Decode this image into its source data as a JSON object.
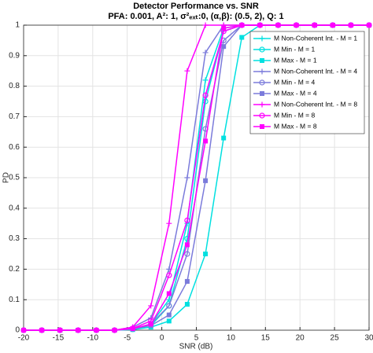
{
  "chart_data": {
    "type": "line",
    "title": "Detector Performance vs. SNR",
    "subtitle": "PFA: 0.001, A²: 1, σ²ₑₓₜ:0, (α,β): (0.5, 2), Q: 1",
    "xlabel": "SNR (dB)",
    "ylabel": "PD",
    "x": [
      -20,
      -17.37,
      -14.74,
      -12.11,
      -9.47,
      -6.84,
      -4.21,
      -1.58,
      1.05,
      3.68,
      6.32,
      8.95,
      11.58,
      14.21,
      16.84,
      19.47,
      22.11,
      24.74,
      27.37,
      30
    ],
    "xlim": [
      -20,
      30
    ],
    "xticks": [
      -20,
      -15,
      -10,
      -5,
      0,
      5,
      10,
      15,
      20,
      25,
      30
    ],
    "ylim": [
      0,
      1
    ],
    "yticks": [
      0,
      0.1,
      0.2,
      0.3,
      0.4,
      0.5,
      0.6,
      0.7,
      0.8,
      0.9,
      1
    ],
    "grid": true,
    "legend_position": "upper-right",
    "series": [
      {
        "name": "M Non-Coherent Int. - M = 1",
        "color": "#00e0e0",
        "marker": "plus",
        "values": [
          0,
          0,
          0,
          0,
          0,
          0,
          0.004,
          0.02,
          0.1,
          0.35,
          0.82,
          0.99,
          1,
          1,
          1,
          1,
          1,
          1,
          1,
          1
        ]
      },
      {
        "name": "M Min - M = 1",
        "color": "#00e0e0",
        "marker": "circle",
        "values": [
          0,
          0,
          0,
          0,
          0,
          0,
          0.003,
          0.015,
          0.08,
          0.3,
          0.75,
          0.98,
          1,
          1,
          1,
          1,
          1,
          1,
          1,
          1
        ]
      },
      {
        "name": "M Max - M = 1",
        "color": "#00e0e0",
        "marker": "square",
        "values": [
          0,
          0,
          0,
          0,
          0,
          0,
          0.002,
          0.01,
          0.03,
          0.085,
          0.25,
          0.63,
          0.96,
          1,
          1,
          1,
          1,
          1,
          1,
          1
        ]
      },
      {
        "name": "M Non-Coherent Int. - M = 4",
        "color": "#7b7bdb",
        "marker": "plus",
        "values": [
          0,
          0,
          0,
          0,
          0,
          0,
          0.01,
          0.04,
          0.2,
          0.5,
          0.91,
          1,
          1,
          1,
          1,
          1,
          1,
          1,
          1,
          1
        ]
      },
      {
        "name": "M Min - M = 4",
        "color": "#7b7bdb",
        "marker": "circle",
        "values": [
          0,
          0,
          0,
          0,
          0,
          0,
          0.005,
          0.02,
          0.08,
          0.25,
          0.66,
          0.95,
          1,
          1,
          1,
          1,
          1,
          1,
          1,
          1
        ]
      },
      {
        "name": "M Max - M = 4",
        "color": "#7b7bdb",
        "marker": "square",
        "values": [
          0,
          0,
          0,
          0,
          0,
          0,
          0.004,
          0.015,
          0.05,
          0.16,
          0.49,
          0.93,
          1,
          1,
          1,
          1,
          1,
          1,
          1,
          1
        ]
      },
      {
        "name": "M Non-Coherent Int. - M = 8",
        "color": "#ff00ff",
        "marker": "plus",
        "values": [
          0,
          0,
          0,
          0,
          0,
          0,
          0.01,
          0.08,
          0.35,
          0.85,
          1,
          1,
          1,
          1,
          1,
          1,
          1,
          1,
          1,
          1
        ]
      },
      {
        "name": "M Min - M = 8",
        "color": "#ff00ff",
        "marker": "circle",
        "values": [
          0,
          0,
          0,
          0,
          0,
          0,
          0.006,
          0.03,
          0.18,
          0.36,
          0.77,
          0.98,
          1,
          1,
          1,
          1,
          1,
          1,
          1,
          1
        ]
      },
      {
        "name": "M Max - M = 8",
        "color": "#ff00ff",
        "marker": "square",
        "values": [
          0,
          0,
          0,
          0,
          0,
          0,
          0.005,
          0.02,
          0.12,
          0.28,
          0.62,
          0.99,
          1,
          1,
          1,
          1,
          1,
          1,
          1,
          1
        ]
      }
    ]
  }
}
